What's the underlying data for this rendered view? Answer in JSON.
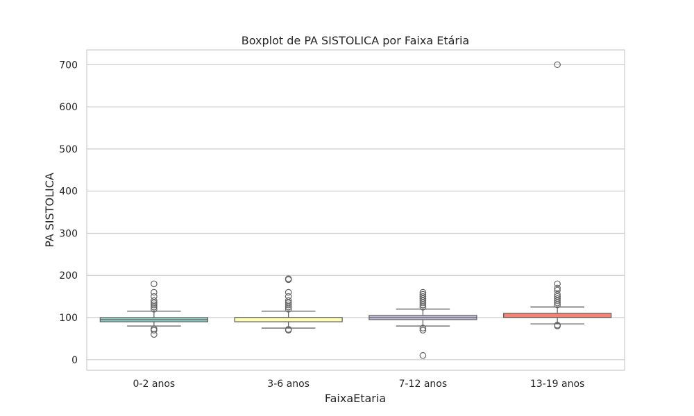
{
  "chart_data": {
    "type": "boxplot",
    "title": "Boxplot de PA SISTOLICA por Faixa Etária",
    "xlabel": "FaixaEtaria",
    "ylabel": "PA SISTOLICA",
    "ylim": [
      -25,
      735
    ],
    "yticks": [
      0,
      100,
      200,
      300,
      400,
      500,
      600,
      700
    ],
    "grid": true,
    "categories": [
      "0-2 anos",
      "3-6 anos",
      "7-12 anos",
      "13-19 anos"
    ],
    "boxes": [
      {
        "category": "0-2 anos",
        "color": "#8dd3c7",
        "whisker_low": 80,
        "q1": 90,
        "median": 95,
        "q3": 100,
        "whisker_high": 115,
        "outliers": [
          60,
          70,
          73,
          120,
          125,
          130,
          135,
          140,
          150,
          160,
          180
        ]
      },
      {
        "category": "3-6 anos",
        "color": "#ffffb3",
        "whisker_low": 75,
        "q1": 90,
        "median": 100,
        "q3": 100,
        "whisker_high": 115,
        "outliers": [
          70,
          72,
          120,
          125,
          130,
          135,
          140,
          150,
          160,
          190,
          192
        ]
      },
      {
        "category": "7-12 anos",
        "color": "#bebada",
        "whisker_low": 80,
        "q1": 95,
        "median": 100,
        "q3": 105,
        "whisker_high": 120,
        "outliers": [
          10,
          70,
          75,
          125,
          130,
          135,
          140,
          145,
          150,
          155,
          160
        ]
      },
      {
        "category": "13-19 anos",
        "color": "#fb8072",
        "whisker_low": 85,
        "q1": 100,
        "median": 100,
        "q3": 110,
        "whisker_high": 125,
        "outliers": [
          80,
          82,
          130,
          135,
          140,
          145,
          150,
          155,
          165,
          170,
          180,
          700
        ]
      }
    ]
  }
}
